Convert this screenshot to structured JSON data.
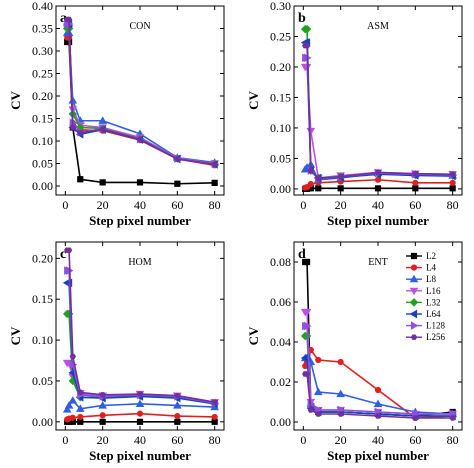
{
  "figure": {
    "legend_position": "inside panel d, top-right"
  },
  "series_styles": [
    {
      "name": "L2",
      "color": "#000000",
      "marker": "square"
    },
    {
      "name": "L4",
      "color": "#e02020",
      "marker": "circle"
    },
    {
      "name": "L8",
      "color": "#2f5fe0",
      "marker": "triangle-up"
    },
    {
      "name": "L16",
      "color": "#c050e0",
      "marker": "triangle-down"
    },
    {
      "name": "L32",
      "color": "#20a020",
      "marker": "diamond"
    },
    {
      "name": "L64",
      "color": "#1840c0",
      "marker": "triangle-left"
    },
    {
      "name": "L128",
      "color": "#9050e0",
      "marker": "triangle-right"
    },
    {
      "name": "L256",
      "color": "#7030a0",
      "marker": "hexagon"
    }
  ],
  "chart_data": [
    {
      "panel": "a",
      "type": "line",
      "title": "CON",
      "xlabel": "Step pixel number",
      "ylabel": "CV",
      "xlim": [
        -5,
        85
      ],
      "ylim": [
        -0.02,
        0.4
      ],
      "xticks": [
        0,
        20,
        40,
        60,
        80
      ],
      "yticks": [
        0.0,
        0.05,
        0.1,
        0.15,
        0.2,
        0.25,
        0.3,
        0.35,
        0.4
      ],
      "ytick_labels": [
        "0.00",
        "0.05",
        "0.10",
        "0.15",
        "0.20",
        "0.25",
        "0.30",
        "0.35",
        "0.40"
      ],
      "x": [
        1,
        2,
        4,
        8,
        20,
        40,
        60,
        80
      ],
      "series": [
        {
          "name": "L2",
          "values": [
            0.32,
            0.32,
            0.13,
            0.015,
            0.008,
            0.008,
            0.005,
            0.007
          ]
        },
        {
          "name": "L4",
          "values": [
            0.33,
            0.33,
            0.14,
            0.125,
            0.123,
            0.102,
            0.06,
            0.046
          ]
        },
        {
          "name": "L8",
          "values": [
            0.34,
            0.34,
            0.19,
            0.145,
            0.145,
            0.116,
            0.063,
            0.052
          ]
        },
        {
          "name": "L16",
          "values": [
            0.35,
            0.35,
            0.17,
            0.135,
            0.13,
            0.108,
            0.062,
            0.05
          ]
        },
        {
          "name": "L32",
          "values": [
            0.35,
            0.35,
            0.16,
            0.13,
            0.128,
            0.105,
            0.061,
            0.049
          ]
        },
        {
          "name": "L64",
          "values": [
            0.36,
            0.36,
            0.13,
            0.115,
            0.125,
            0.103,
            0.06,
            0.048
          ]
        },
        {
          "name": "L128",
          "values": [
            0.36,
            0.36,
            0.14,
            0.12,
            0.127,
            0.104,
            0.061,
            0.049
          ]
        },
        {
          "name": "L256",
          "values": [
            0.37,
            0.37,
            0.13,
            0.118,
            0.126,
            0.104,
            0.06,
            0.048
          ]
        }
      ]
    },
    {
      "panel": "b",
      "type": "line",
      "title": "ASM",
      "xlabel": "Step pixel number",
      "ylabel": "CV",
      "xlim": [
        -5,
        85
      ],
      "ylim": [
        -0.01,
        0.3
      ],
      "xticks": [
        0,
        20,
        40,
        60,
        80
      ],
      "yticks": [
        0.0,
        0.05,
        0.1,
        0.15,
        0.2,
        0.25,
        0.3
      ],
      "ytick_labels": [
        "0.00",
        "0.05",
        "0.10",
        "0.15",
        "0.20",
        "0.25",
        "0.30"
      ],
      "x": [
        1,
        2,
        4,
        8,
        20,
        40,
        60,
        80
      ],
      "series": [
        {
          "name": "L2",
          "values": [
            0.0,
            0.0,
            0.001,
            0.001,
            0.001,
            0.001,
            0.001,
            0.001
          ]
        },
        {
          "name": "L4",
          "values": [
            0.002,
            0.003,
            0.008,
            0.01,
            0.012,
            0.015,
            0.01,
            0.01
          ]
        },
        {
          "name": "L8",
          "values": [
            0.032,
            0.035,
            0.04,
            0.015,
            0.018,
            0.026,
            0.024,
            0.022
          ]
        },
        {
          "name": "L16",
          "values": [
            0.2,
            0.2,
            0.095,
            0.018,
            0.022,
            0.027,
            0.025,
            0.024
          ]
        },
        {
          "name": "L32",
          "values": [
            0.262,
            0.262,
            0.03,
            0.018,
            0.02,
            0.025,
            0.023,
            0.022
          ]
        },
        {
          "name": "L64",
          "values": [
            0.24,
            0.24,
            0.03,
            0.018,
            0.019,
            0.024,
            0.022,
            0.021
          ]
        },
        {
          "name": "L128",
          "values": [
            0.215,
            0.215,
            0.03,
            0.017,
            0.02,
            0.026,
            0.024,
            0.023
          ]
        },
        {
          "name": "L256",
          "values": [
            0.235,
            0.235,
            0.03,
            0.017,
            0.02,
            0.027,
            0.025,
            0.024
          ]
        }
      ]
    },
    {
      "panel": "c",
      "type": "line",
      "title": "HOM",
      "xlabel": "Step pixel number",
      "ylabel": "CV",
      "xlim": [
        -5,
        85
      ],
      "ylim": [
        -0.01,
        0.22
      ],
      "xticks": [
        0,
        20,
        40,
        60,
        80
      ],
      "yticks": [
        0.0,
        0.05,
        0.1,
        0.15,
        0.2
      ],
      "ytick_labels": [
        "0.00",
        "0.05",
        "0.10",
        "0.15",
        "0.20"
      ],
      "x": [
        1,
        2,
        4,
        8,
        20,
        40,
        60,
        80
      ],
      "series": [
        {
          "name": "L2",
          "values": [
            0.0,
            0.0,
            0.0,
            0.0,
            0.0,
            0.0,
            0.0,
            0.0
          ]
        },
        {
          "name": "L4",
          "values": [
            0.003,
            0.004,
            0.005,
            0.006,
            0.008,
            0.01,
            0.007,
            0.006
          ]
        },
        {
          "name": "L8",
          "values": [
            0.015,
            0.02,
            0.026,
            0.016,
            0.02,
            0.022,
            0.02,
            0.018
          ]
        },
        {
          "name": "L16",
          "values": [
            0.072,
            0.072,
            0.055,
            0.035,
            0.032,
            0.034,
            0.032,
            0.024
          ]
        },
        {
          "name": "L32",
          "values": [
            0.132,
            0.132,
            0.05,
            0.03,
            0.03,
            0.032,
            0.03,
            0.022
          ]
        },
        {
          "name": "L64",
          "values": [
            0.17,
            0.17,
            0.06,
            0.03,
            0.029,
            0.031,
            0.029,
            0.022
          ]
        },
        {
          "name": "L128",
          "values": [
            0.185,
            0.185,
            0.07,
            0.033,
            0.031,
            0.033,
            0.031,
            0.023
          ]
        },
        {
          "name": "L256",
          "values": [
            0.21,
            0.21,
            0.08,
            0.036,
            0.033,
            0.034,
            0.032,
            0.024
          ]
        }
      ]
    },
    {
      "panel": "d",
      "type": "line",
      "title": "ENT",
      "xlabel": "Step pixel number",
      "ylabel": "CV",
      "xlim": [
        -5,
        85
      ],
      "ylim": [
        -0.004,
        0.09
      ],
      "xticks": [
        0,
        20,
        40,
        60,
        80
      ],
      "yticks": [
        0.0,
        0.02,
        0.04,
        0.06,
        0.08
      ],
      "ytick_labels": [
        "0.00",
        "0.02",
        "0.04",
        "0.06",
        "0.08"
      ],
      "x": [
        1,
        2,
        4,
        8,
        20,
        40,
        60,
        80
      ],
      "series": [
        {
          "name": "L2",
          "values": [
            0.08,
            0.08,
            0.008,
            0.005,
            0.005,
            0.004,
            0.003,
            0.005
          ]
        },
        {
          "name": "L4",
          "values": [
            0.028,
            0.03,
            0.036,
            0.031,
            0.03,
            0.016,
            0.002,
            0.003
          ]
        },
        {
          "name": "L8",
          "values": [
            0.032,
            0.032,
            0.03,
            0.015,
            0.014,
            0.009,
            0.005,
            0.004
          ]
        },
        {
          "name": "L16",
          "values": [
            0.055,
            0.055,
            0.01,
            0.006,
            0.006,
            0.005,
            0.004,
            0.004
          ]
        },
        {
          "name": "L32",
          "values": [
            0.043,
            0.043,
            0.008,
            0.005,
            0.005,
            0.004,
            0.003,
            0.003
          ]
        },
        {
          "name": "L64",
          "values": [
            0.032,
            0.032,
            0.007,
            0.005,
            0.005,
            0.004,
            0.003,
            0.003
          ]
        },
        {
          "name": "L128",
          "values": [
            0.048,
            0.048,
            0.009,
            0.006,
            0.006,
            0.005,
            0.004,
            0.004
          ]
        },
        {
          "name": "L256",
          "values": [
            0.024,
            0.024,
            0.006,
            0.004,
            0.004,
            0.003,
            0.002,
            0.002
          ]
        }
      ]
    }
  ]
}
